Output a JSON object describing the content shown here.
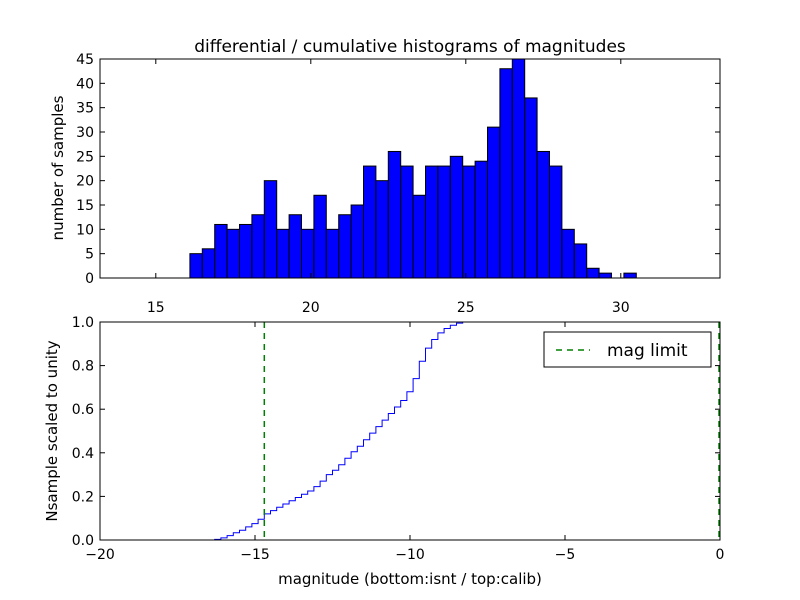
{
  "chart_data": [
    {
      "type": "bar",
      "title": "differential / cumulative histograms of magnitudes",
      "xlabel": "",
      "ylabel": "number of samples",
      "xlim": [
        13.2,
        33.2
      ],
      "ylim": [
        0,
        45
      ],
      "xticks": [
        "15",
        "20",
        "25",
        "30"
      ],
      "yticks": [
        "0",
        "5",
        "10",
        "15",
        "20",
        "25",
        "30",
        "35",
        "40",
        "45"
      ],
      "bin_start": 16.1,
      "bin_width": 0.4,
      "values": [
        5,
        6,
        11,
        10,
        11,
        13,
        20,
        10,
        13,
        10,
        17,
        10,
        13,
        15,
        23,
        20,
        26,
        23,
        17,
        23,
        23,
        25,
        23,
        24,
        31,
        43,
        45,
        37,
        26,
        23,
        10,
        7,
        2,
        1,
        0,
        1
      ],
      "color": "#0000ff"
    },
    {
      "type": "line",
      "xlabel": "magnitude (bottom:isnt / top:calib)",
      "ylabel": "Nsample scaled to unity",
      "xlim": [
        -20,
        0
      ],
      "ylim": [
        0,
        1.0
      ],
      "xticks": [
        "−20",
        "−15",
        "−10",
        "−5",
        "0"
      ],
      "yticks": [
        "0.0",
        "0.2",
        "0.4",
        "0.6",
        "0.8",
        "1.0"
      ],
      "cumulative_x": [
        -16.3,
        -16.1,
        -15.9,
        -15.7,
        -15.5,
        -15.3,
        -15.1,
        -14.9,
        -14.7,
        -14.5,
        -14.3,
        -14.1,
        -13.9,
        -13.7,
        -13.5,
        -13.3,
        -13.1,
        -12.9,
        -12.7,
        -12.5,
        -12.3,
        -12.1,
        -11.9,
        -11.7,
        -11.5,
        -11.3,
        -11.1,
        -10.9,
        -10.7,
        -10.5,
        -10.3,
        -10.1,
        -9.9,
        -9.7,
        -9.5,
        -9.3,
        -9.1,
        -8.9,
        -8.7,
        -8.5,
        -8.3,
        -8.1
      ],
      "cumulative_y": [
        0.003,
        0.01,
        0.02,
        0.033,
        0.045,
        0.06,
        0.075,
        0.095,
        0.12,
        0.135,
        0.15,
        0.165,
        0.18,
        0.195,
        0.21,
        0.225,
        0.245,
        0.27,
        0.3,
        0.32,
        0.345,
        0.375,
        0.405,
        0.43,
        0.46,
        0.49,
        0.52,
        0.55,
        0.58,
        0.61,
        0.64,
        0.68,
        0.74,
        0.82,
        0.88,
        0.92,
        0.95,
        0.97,
        0.985,
        0.995,
        1.0,
        1.0
      ],
      "line_color": "#0000ff",
      "mag_limit": -14.7,
      "mag_limit_color": "#008000",
      "legend": {
        "label": "mag limit",
        "position": "top-right"
      }
    }
  ]
}
